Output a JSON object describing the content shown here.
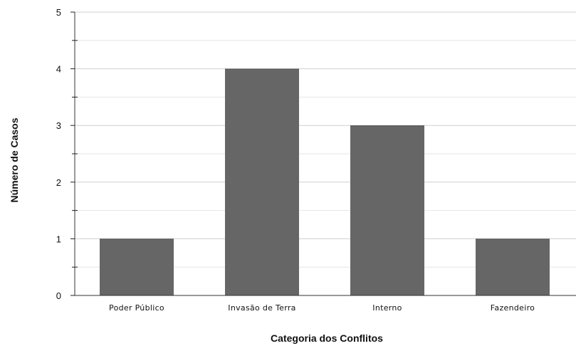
{
  "chart_data": {
    "type": "bar",
    "title": "",
    "xlabel": "Categoria dos Conflitos",
    "ylabel": "Número de Casos",
    "categories": [
      "Poder Público",
      "Invasão de Terra",
      "Interno",
      "Fazendeiro"
    ],
    "values": [
      1,
      4,
      3,
      1
    ],
    "ylim": [
      0,
      5
    ],
    "yticks": [
      "0",
      "1",
      "2",
      "3",
      "4",
      "5"
    ],
    "minor_ticks_per_major": 2,
    "grid": true,
    "bar_color": "#666666",
    "grid_color": "#dddddd",
    "axis_color": "#333333"
  }
}
